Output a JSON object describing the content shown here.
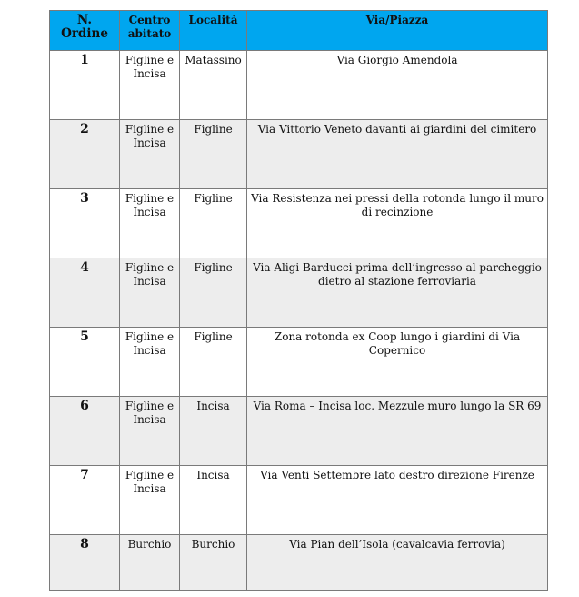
{
  "header": {
    "n_ordine": "N. Ordine",
    "centro": "Centro abitato",
    "localita": "Località",
    "via": "Via/Piazza"
  },
  "rows": [
    {
      "n": "1",
      "centro": "Figline e Incisa",
      "localita": "Matassino",
      "via": "Via Giorgio Amendola"
    },
    {
      "n": "2",
      "centro": "Figline e Incisa",
      "localita": "Figline",
      "via": "Via Vittorio Veneto davanti ai giardini del cimitero"
    },
    {
      "n": "3",
      "centro": "Figline e Incisa",
      "localita": "Figline",
      "via": "Via Resistenza nei pressi della rotonda lungo il muro di recinzione"
    },
    {
      "n": "4",
      "centro": "Figline e Incisa",
      "localita": "Figline",
      "via": "Via Aligi Barducci prima dell’ingresso al parcheggio dietro al stazione ferroviaria"
    },
    {
      "n": "5",
      "centro": "Figline e Incisa",
      "localita": "Figline",
      "via": "Zona rotonda ex Coop lungo i giardini di Via Copernico"
    },
    {
      "n": "6",
      "centro": "Figline e Incisa",
      "localita": "Incisa",
      "via": "Via Roma – Incisa loc. Mezzule muro lungo la SR 69"
    },
    {
      "n": "7",
      "centro": "Figline e Incisa",
      "localita": "Incisa",
      "via": "Via Venti Settembre lato destro direzione Firenze"
    },
    {
      "n": "8",
      "centro": "Burchio",
      "localita": "Burchio",
      "via": "Via Pian dell’Isola (cavalcavia ferrovia)"
    }
  ],
  "colors": {
    "header": "#00a6ef",
    "alt_row": "#ededed"
  }
}
